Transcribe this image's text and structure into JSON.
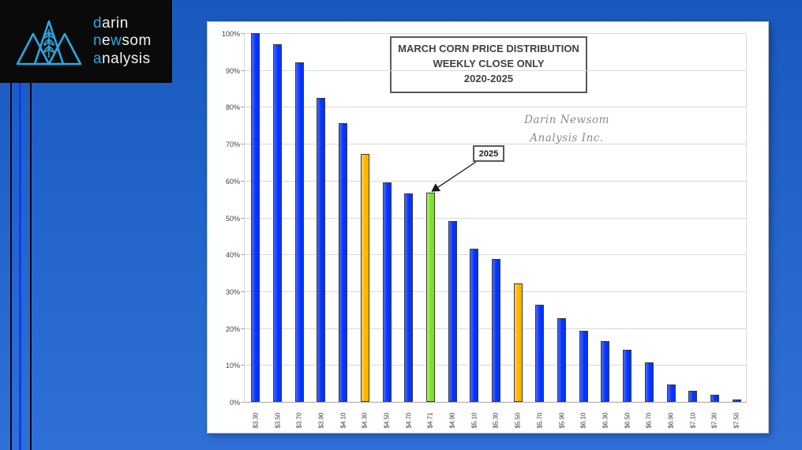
{
  "page": {
    "background_top": "#1959BF",
    "background_bottom": "#2F70D6"
  },
  "logo": {
    "icon": "mountain-triangles-wheat-logo",
    "accent_color": "#2BA7E0",
    "text_color": "#F2F2F2",
    "lines": [
      [
        {
          "t": "d",
          "a": true
        },
        {
          "t": "arin",
          "a": false
        }
      ],
      [
        {
          "t": "n",
          "a": true
        },
        {
          "t": "e",
          "a": false
        },
        {
          "t": "w",
          "a": true
        },
        {
          "t": "som",
          "a": false
        }
      ],
      [
        {
          "t": "a",
          "a": true
        },
        {
          "t": "nalysis",
          "a": false
        }
      ]
    ]
  },
  "chart_data": {
    "type": "bar",
    "title_lines": [
      "MARCH CORN PRICE DISTRIBUTION",
      "WEEKLY CLOSE ONLY",
      "2020-2025"
    ],
    "watermark_lines": [
      "Darin Newsom",
      "Analysis Inc."
    ],
    "annotation": {
      "label": "2025",
      "target_category": "$4.71"
    },
    "categories": [
      "$3.30",
      "$3.50",
      "$3.70",
      "$3.90",
      "$4.10",
      "$4.30",
      "$4.50",
      "$4.70",
      "$4.71",
      "$4.90",
      "$5.10",
      "$5.30",
      "$5.50",
      "$5.70",
      "$5.90",
      "$6.10",
      "$6.30",
      "$6.50",
      "$6.70",
      "$6.90",
      "$7.10",
      "$7.30",
      "$7.50"
    ],
    "values": [
      100,
      97,
      92,
      82.5,
      75.5,
      67.3,
      59.5,
      56.5,
      56.7,
      49,
      41.5,
      38.8,
      32.1,
      26.4,
      22.8,
      19.3,
      16.5,
      14.1,
      10.8,
      4.8,
      2.9,
      1.9,
      0.7
    ],
    "colors": {
      "default": "#0433FF",
      "default_light": "#4D6BFF",
      "highlight": "#FFB400",
      "highlight_light": "#FFD24D",
      "current": "#77E422",
      "current_light": "#B4F06E",
      "bar_outline": "#3A3A3A",
      "gridline": "#D9D9D9"
    },
    "special_bars": {
      "$4.30": "highlight",
      "$5.50": "highlight",
      "$4.71": "current"
    },
    "y_ticks": [
      "0%",
      "10%",
      "20%",
      "30%",
      "40%",
      "50%",
      "60%",
      "70%",
      "80%",
      "90%",
      "100%"
    ],
    "ylim": [
      0,
      100
    ],
    "grid": true,
    "legend": null
  }
}
